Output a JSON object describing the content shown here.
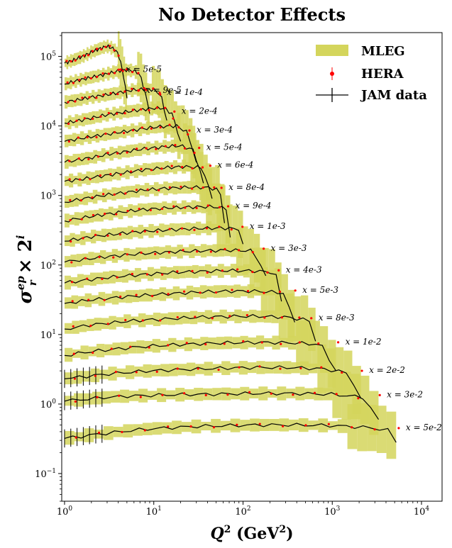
{
  "chart_data": {
    "type": "line",
    "title": "No Detector Effects",
    "xlabel_main": "Q",
    "xlabel_sup": "2",
    "xlabel_unit": " (GeV",
    "xlabel_unit_sup": "2",
    "xlabel_close": ")",
    "ylabel": "σ_r^{ep} × 2^i",
    "x_scale": "log",
    "y_scale": "log",
    "xlim": [
      0.93,
      17000
    ],
    "ylim": [
      0.04,
      220000
    ],
    "x_ticks": [
      {
        "value": 1,
        "base": "10",
        "exp": "0"
      },
      {
        "value": 10,
        "base": "10",
        "exp": "1"
      },
      {
        "value": 100,
        "base": "10",
        "exp": "2"
      },
      {
        "value": 1000,
        "base": "10",
        "exp": "3"
      },
      {
        "value": 10000,
        "base": "10",
        "exp": "4"
      }
    ],
    "y_ticks": [
      {
        "value": 0.1,
        "base": "10",
        "exp": "−1"
      },
      {
        "value": 1,
        "base": "10",
        "exp": "0"
      },
      {
        "value": 10,
        "base": "10",
        "exp": "1"
      },
      {
        "value": 100,
        "base": "10",
        "exp": "2"
      },
      {
        "value": 1000,
        "base": "10",
        "exp": "3"
      },
      {
        "value": 10000,
        "base": "10",
        "exp": "4"
      },
      {
        "value": 100000,
        "base": "10",
        "exp": "5"
      }
    ],
    "legend": {
      "placement": "top-right",
      "entries": [
        {
          "label": "MLEG",
          "kind": "band",
          "color": "#d4d55c"
        },
        {
          "label": "HERA",
          "kind": "point",
          "color": "#ff0000"
        },
        {
          "label": "JAM data",
          "kind": "line",
          "color": "#000000"
        }
      ]
    },
    "colors": {
      "band": "#d4d55c",
      "hera": "#ff0000",
      "jam": "#000000"
    },
    "series": [
      {
        "label": "x = 5e-5",
        "label_x": 4.5,
        "points": [
          [
            1.0,
            80000
          ],
          [
            1.3,
            90000
          ],
          [
            1.6,
            100000
          ],
          [
            2.0,
            115000
          ],
          [
            2.5,
            130000
          ],
          [
            3.0,
            140000
          ],
          [
            3.5,
            130000
          ],
          [
            4.0,
            110000
          ],
          [
            4.5,
            60000
          ],
          [
            5.0,
            25000
          ]
        ]
      },
      {
        "label": "x = 9e-5",
        "label_x": 7.5,
        "points": [
          [
            1.0,
            40000
          ],
          [
            1.4,
            45000
          ],
          [
            2.0,
            50000
          ],
          [
            3.0,
            56000
          ],
          [
            4.0,
            62000
          ],
          [
            5.0,
            64000
          ],
          [
            6.0,
            62000
          ],
          [
            7.0,
            55000
          ],
          [
            8.0,
            30000
          ],
          [
            9.0,
            15000
          ]
        ]
      },
      {
        "label": "x = 1e-4",
        "label_x": 13,
        "points": [
          [
            1.0,
            22000
          ],
          [
            1.5,
            24000
          ],
          [
            2.0,
            26000
          ],
          [
            3.0,
            28000
          ],
          [
            4.5,
            31000
          ],
          [
            6.0,
            33000
          ],
          [
            8.0,
            34000
          ],
          [
            10.0,
            33000
          ],
          [
            12.0,
            28000
          ],
          [
            14.0,
            12000
          ]
        ]
      },
      {
        "label": "x = 2e-4",
        "label_x": 19,
        "points": [
          [
            1.0,
            11000
          ],
          [
            1.5,
            12000
          ],
          [
            2.0,
            13000
          ],
          [
            3.0,
            14500
          ],
          [
            5.0,
            16000
          ],
          [
            7.0,
            17000
          ],
          [
            10.0,
            18000
          ],
          [
            13.0,
            18000
          ],
          [
            16.0,
            15000
          ],
          [
            20.0,
            6000
          ]
        ]
      },
      {
        "label": "x = 3e-4",
        "label_x": 28,
        "points": [
          [
            1.0,
            6000
          ],
          [
            1.5,
            6600
          ],
          [
            2.0,
            7000
          ],
          [
            3.0,
            7600
          ],
          [
            5.0,
            8400
          ],
          [
            8.0,
            9200
          ],
          [
            12.0,
            9800
          ],
          [
            18.0,
            10000
          ],
          [
            24.0,
            8000
          ],
          [
            30.0,
            3000
          ]
        ]
      },
      {
        "label": "x = 5e-4",
        "label_x": 36,
        "points": [
          [
            1.0,
            3000
          ],
          [
            1.5,
            3300
          ],
          [
            2.0,
            3500
          ],
          [
            3.0,
            3900
          ],
          [
            5.0,
            4300
          ],
          [
            8.0,
            4700
          ],
          [
            13.0,
            5000
          ],
          [
            20.0,
            5200
          ],
          [
            28.0,
            4500
          ],
          [
            36.0,
            1500
          ]
        ]
      },
      {
        "label": "x = 6e-4",
        "label_x": 48,
        "points": [
          [
            1.0,
            1600
          ],
          [
            1.5,
            1700
          ],
          [
            2.0,
            1800
          ],
          [
            3.0,
            1950
          ],
          [
            5.0,
            2150
          ],
          [
            8.0,
            2350
          ],
          [
            13.0,
            2500
          ],
          [
            22.0,
            2600
          ],
          [
            35.0,
            2500
          ],
          [
            45.0,
            900
          ]
        ]
      },
      {
        "label": "x = 8e-4",
        "label_x": 64,
        "points": [
          [
            1.0,
            800
          ],
          [
            1.5,
            880
          ],
          [
            2.0,
            940
          ],
          [
            3.0,
            1020
          ],
          [
            5.0,
            1110
          ],
          [
            8.0,
            1200
          ],
          [
            14.0,
            1270
          ],
          [
            25.0,
            1310
          ],
          [
            40.0,
            1300
          ],
          [
            55.0,
            1200
          ],
          [
            62.0,
            400
          ]
        ]
      },
      {
        "label": "x = 9e-4",
        "label_x": 76,
        "points": [
          [
            1.0,
            430
          ],
          [
            1.5,
            470
          ],
          [
            2.0,
            500
          ],
          [
            3.0,
            540
          ],
          [
            5.0,
            590
          ],
          [
            8.0,
            630
          ],
          [
            14.0,
            660
          ],
          [
            25.0,
            680
          ],
          [
            45.0,
            690
          ],
          [
            65.0,
            650
          ],
          [
            72.0,
            250
          ]
        ]
      },
      {
        "label": "x = 1e-3",
        "label_x": 110,
        "points": [
          [
            1.0,
            220
          ],
          [
            1.5,
            240
          ],
          [
            2.0,
            255
          ],
          [
            3.0,
            270
          ],
          [
            5.0,
            290
          ],
          [
            8.0,
            305
          ],
          [
            15.0,
            320
          ],
          [
            30.0,
            335
          ],
          [
            60.0,
            340
          ],
          [
            90.0,
            330
          ],
          [
            100.0,
            200
          ]
        ]
      },
      {
        "label": "x = 3e-3",
        "label_x": 190,
        "points": [
          [
            1.0,
            110
          ],
          [
            1.5,
            118
          ],
          [
            2.0,
            124
          ],
          [
            3.0,
            132
          ],
          [
            5.0,
            140
          ],
          [
            9.0,
            148
          ],
          [
            17.0,
            155
          ],
          [
            35.0,
            160
          ],
          [
            70.0,
            163
          ],
          [
            130.0,
            160
          ],
          [
            180.0,
            70
          ]
        ]
      },
      {
        "label": "x = 4e-3",
        "label_x": 280,
        "points": [
          [
            1.0,
            55
          ],
          [
            1.5,
            59
          ],
          [
            2.0,
            62
          ],
          [
            3.0,
            66
          ],
          [
            5.0,
            70
          ],
          [
            9.0,
            74
          ],
          [
            17.0,
            78
          ],
          [
            35.0,
            81
          ],
          [
            70.0,
            83
          ],
          [
            140.0,
            82
          ],
          [
            230.0,
            78
          ],
          [
            270.0,
            30
          ]
        ]
      },
      {
        "label": "x = 5e-3",
        "label_x": 430,
        "points": [
          [
            1.0,
            28
          ],
          [
            1.5,
            30
          ],
          [
            2.0,
            31.5
          ],
          [
            3.0,
            33
          ],
          [
            5.0,
            35
          ],
          [
            9.0,
            37
          ],
          [
            17.0,
            39
          ],
          [
            35.0,
            41
          ],
          [
            70.0,
            42
          ],
          [
            140.0,
            42
          ],
          [
            280.0,
            40
          ],
          [
            380.0,
            15
          ]
        ]
      },
      {
        "label": "x = 8e-3",
        "label_x": 650,
        "points": [
          [
            1.0,
            12
          ],
          [
            1.5,
            13
          ],
          [
            2.0,
            13.8
          ],
          [
            3.0,
            14.5
          ],
          [
            5.0,
            15.5
          ],
          [
            9.0,
            16.3
          ],
          [
            17.0,
            17
          ],
          [
            35.0,
            17.8
          ],
          [
            70.0,
            18.2
          ],
          [
            140.0,
            18.3
          ],
          [
            300.0,
            17.8
          ],
          [
            550.0,
            16
          ],
          [
            650.0,
            8
          ]
        ]
      },
      {
        "label": "x = 1e-2",
        "label_x": 1300,
        "points": [
          [
            1.0,
            5
          ],
          [
            1.5,
            5.4
          ],
          [
            2.0,
            5.7
          ],
          [
            3.0,
            6
          ],
          [
            5.0,
            6.4
          ],
          [
            9.0,
            6.8
          ],
          [
            17.0,
            7.1
          ],
          [
            35.0,
            7.4
          ],
          [
            70.0,
            7.6
          ],
          [
            150.0,
            7.7
          ],
          [
            350.0,
            7.6
          ],
          [
            750.0,
            7.2
          ],
          [
            1100.0,
            3
          ]
        ]
      },
      {
        "label": "x = 2e-2",
        "label_x": 2400,
        "points": [
          [
            1.0,
            2.3
          ],
          [
            1.5,
            2.45
          ],
          [
            2.0,
            2.55
          ],
          [
            3.0,
            2.7
          ],
          [
            5.0,
            2.85
          ],
          [
            9.0,
            3
          ],
          [
            17.0,
            3.1
          ],
          [
            35.0,
            3.2
          ],
          [
            70.0,
            3.3
          ],
          [
            150.0,
            3.35
          ],
          [
            350.0,
            3.35
          ],
          [
            800.0,
            3.2
          ],
          [
            1500.0,
            2.8
          ],
          [
            2100.0,
            1.2
          ]
        ]
      },
      {
        "label": "x = 3e-2",
        "label_x": 3800,
        "points": [
          [
            1.0,
            1.1
          ],
          [
            1.5,
            1.15
          ],
          [
            2.0,
            1.2
          ],
          [
            3.0,
            1.25
          ],
          [
            5.0,
            1.3
          ],
          [
            9.0,
            1.33
          ],
          [
            17.0,
            1.36
          ],
          [
            35.0,
            1.38
          ],
          [
            70.0,
            1.4
          ],
          [
            150.0,
            1.42
          ],
          [
            400.0,
            1.42
          ],
          [
            1000.0,
            1.38
          ],
          [
            2200.0,
            1.25
          ],
          [
            3300.0,
            0.6
          ]
        ]
      },
      {
        "label": "x = 5e-2",
        "label_x": 6200,
        "points": [
          [
            1.0,
            0.32
          ],
          [
            1.5,
            0.34
          ],
          [
            2.0,
            0.36
          ],
          [
            3.0,
            0.38
          ],
          [
            5.0,
            0.41
          ],
          [
            9.0,
            0.44
          ],
          [
            17.0,
            0.46
          ],
          [
            35.0,
            0.48
          ],
          [
            70.0,
            0.49
          ],
          [
            150.0,
            0.5
          ],
          [
            400.0,
            0.5
          ],
          [
            1000.0,
            0.49
          ],
          [
            2500.0,
            0.46
          ],
          [
            4200.0,
            0.42
          ],
          [
            5200.0,
            0.28
          ]
        ]
      }
    ]
  }
}
